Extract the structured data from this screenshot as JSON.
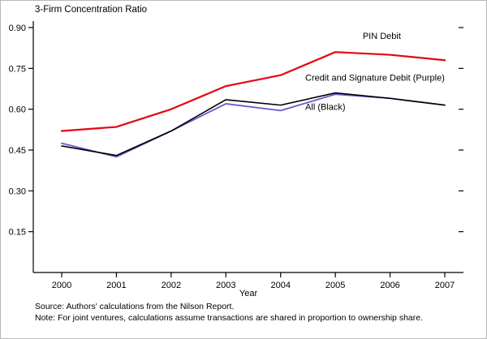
{
  "page": {
    "title": "3-Firm Concentration Ratio",
    "source_line": "Source: Authors' calculations from the Nilson Report.",
    "note_line": "Note: For joint ventures, calculations assume transactions are shared in proportion to ownership share."
  },
  "chart_data": {
    "type": "line",
    "title": "3-Firm Concentration Ratio",
    "xlabel": "Year",
    "ylabel": "",
    "x": [
      2000,
      2001,
      2002,
      2003,
      2004,
      2005,
      2006,
      2007
    ],
    "ylim": [
      0,
      0.9
    ],
    "yticks": [
      0.15,
      0.3,
      0.45,
      0.6,
      0.75,
      0.9
    ],
    "grid": false,
    "legend_position": "none",
    "series": [
      {
        "name": "PIN Debit",
        "color": "#e30613",
        "width": 2.2,
        "values": [
          0.52,
          0.535,
          0.6,
          0.685,
          0.725,
          0.81,
          0.8,
          0.78
        ]
      },
      {
        "name": "Credit and Signature Debit",
        "color": "#6a5acd",
        "width": 1.8,
        "values": [
          0.475,
          0.425,
          0.52,
          0.62,
          0.595,
          0.655,
          0.64,
          0.615
        ]
      },
      {
        "name": "All",
        "color": "#000000",
        "width": 1.6,
        "values": [
          0.465,
          0.43,
          0.52,
          0.635,
          0.615,
          0.66,
          0.64,
          0.615
        ]
      }
    ],
    "annotations": [
      {
        "text": "PIN Debit",
        "x": 2005.5,
        "y": 0.858
      },
      {
        "text": "Credit and Signature Debit (Purple)",
        "x": 2004.45,
        "y": 0.705
      },
      {
        "text": "All (Black)",
        "x": 2004.45,
        "y": 0.598
      }
    ]
  }
}
